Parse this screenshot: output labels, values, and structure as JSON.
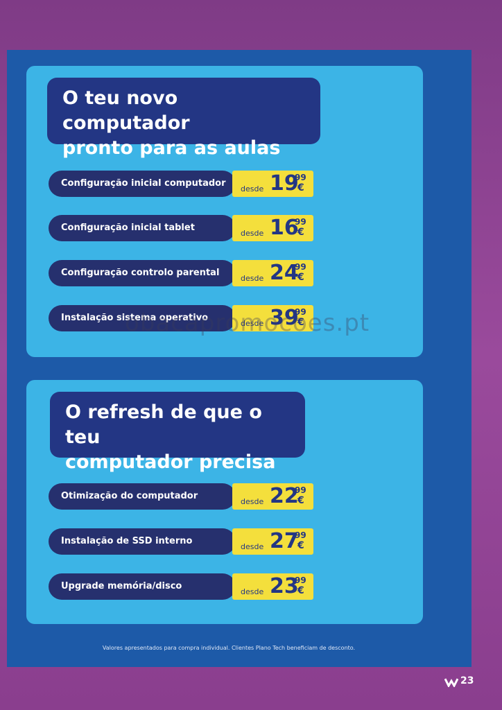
{
  "sections": [
    {
      "title_lines": [
        "O teu novo computador",
        "pronto para as aulas"
      ],
      "items": [
        {
          "label": "Configuração inicial computador",
          "prefix": "desde",
          "price": "19",
          "cents": "99",
          "currency": "€"
        },
        {
          "label": "Configuração inicial tablet",
          "prefix": "desde",
          "price": "16",
          "cents": "99",
          "currency": "€"
        },
        {
          "label": "Configuração controlo parental",
          "prefix": "desde",
          "price": "24",
          "cents": "99",
          "currency": "€"
        },
        {
          "label": "Instalação sistema operativo",
          "prefix": "desde",
          "price": "39",
          "cents": "99",
          "currency": "€"
        }
      ]
    },
    {
      "title_lines": [
        "O refresh de que o teu",
        "computador precisa"
      ],
      "items": [
        {
          "label": "Otimização do computador",
          "prefix": "desde",
          "price": "22",
          "cents": "99",
          "currency": "€"
        },
        {
          "label": "Instalação de SSD interno",
          "prefix": "desde",
          "price": "27",
          "cents": "99",
          "currency": "€"
        },
        {
          "label": "Upgrade memória/disco",
          "prefix": "desde",
          "price": "23",
          "cents": "99",
          "currency": "€"
        }
      ]
    }
  ],
  "footnote": "Valores apresentados para compra individual. Clientes Plano Tech beneficiam de desconto.",
  "watermark": "obacapromocoes.pt",
  "page_number": "23"
}
